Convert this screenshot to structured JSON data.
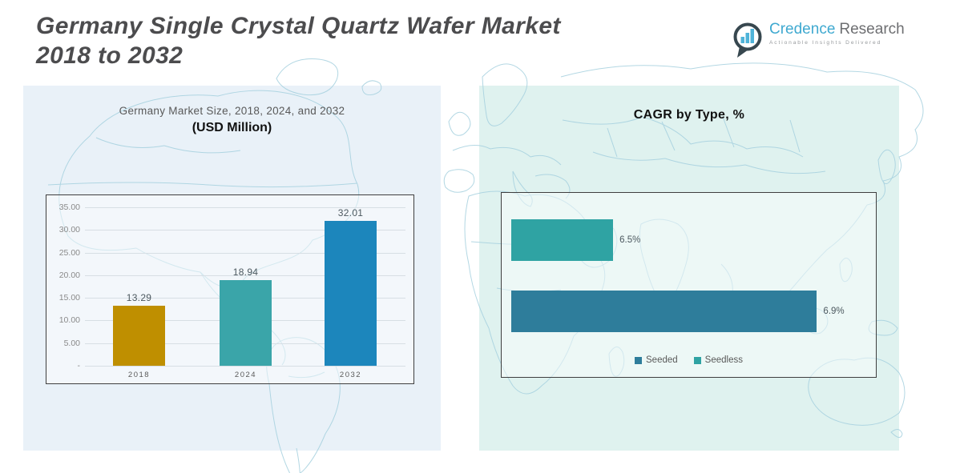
{
  "page": {
    "title_line1": "Germany Single Crystal Quartz Wafer Market",
    "title_line2": "2018 to 2032"
  },
  "logo": {
    "brand_primary": "Credence",
    "brand_secondary": "Research",
    "tagline": "Actionable Insights Delivered",
    "brand_blue": "#3FA9D0",
    "brand_gray": "#6D6E71"
  },
  "left_chart": {
    "title": "Germany Market Size, 2018, 2024, and 2032",
    "subtitle": "(USD Million)"
  },
  "right_chart": {
    "title": "CAGR by Type, %"
  },
  "chart_data": [
    {
      "type": "bar",
      "title": "Germany Market Size, 2018, 2024, and 2032 (USD Million)",
      "categories": [
        "2018",
        "2024",
        "2032"
      ],
      "values": [
        13.29,
        18.94,
        32.01
      ],
      "value_labels": [
        "13.29",
        "18.94",
        "32.01"
      ],
      "bar_colors": [
        "#BF8F00",
        "#3AA5A9",
        "#1C86BC"
      ],
      "xlabel": "",
      "ylabel": "",
      "ylim": [
        0,
        35
      ],
      "ytick_labels": [
        "35.00",
        "30.00",
        "25.00",
        "20.00",
        "15.00",
        "10.00",
        "5.00",
        "-"
      ],
      "grid": true,
      "legend_position": "none"
    },
    {
      "type": "bar",
      "orientation": "horizontal",
      "title": "CAGR by Type, %",
      "categories": [
        "Seedless",
        "Seeded"
      ],
      "values": [
        6.5,
        6.9
      ],
      "value_labels": [
        "6.5%",
        "6.9%"
      ],
      "bar_colors": [
        "#2FA3A3",
        "#2E7D9B"
      ],
      "xlim_visual": [
        6.3,
        7.0
      ],
      "grid": false,
      "legend_position": "bottom",
      "legend_entries": [
        {
          "label": "Seeded",
          "color": "#2E7D9B"
        },
        {
          "label": "Seedless",
          "color": "#2FA3A3"
        }
      ]
    }
  ]
}
